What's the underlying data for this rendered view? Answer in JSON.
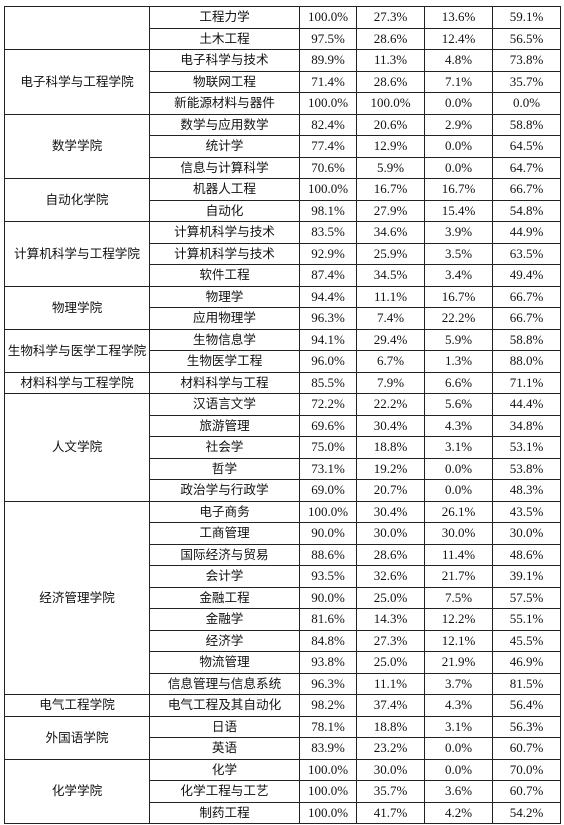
{
  "table": {
    "groups": [
      {
        "college": "",
        "rows": [
          {
            "major": "工程力学",
            "values": [
              "100.0%",
              "27.3%",
              "13.6%",
              "59.1%"
            ]
          },
          {
            "major": "土木工程",
            "values": [
              "97.5%",
              "28.6%",
              "12.4%",
              "56.5%"
            ]
          }
        ]
      },
      {
        "college": "电子科学与工程学院",
        "rows": [
          {
            "major": "电子科学与技术",
            "values": [
              "89.9%",
              "11.3%",
              "4.8%",
              "73.8%"
            ]
          },
          {
            "major": "物联网工程",
            "values": [
              "71.4%",
              "28.6%",
              "7.1%",
              "35.7%"
            ]
          },
          {
            "major": "新能源材料与器件",
            "values": [
              "100.0%",
              "100.0%",
              "0.0%",
              "0.0%"
            ]
          }
        ]
      },
      {
        "college": "数学学院",
        "rows": [
          {
            "major": "数学与应用数学",
            "values": [
              "82.4%",
              "20.6%",
              "2.9%",
              "58.8%"
            ]
          },
          {
            "major": "统计学",
            "values": [
              "77.4%",
              "12.9%",
              "0.0%",
              "64.5%"
            ]
          },
          {
            "major": "信息与计算科学",
            "values": [
              "70.6%",
              "5.9%",
              "0.0%",
              "64.7%"
            ]
          }
        ]
      },
      {
        "college": "自动化学院",
        "rows": [
          {
            "major": "机器人工程",
            "values": [
              "100.0%",
              "16.7%",
              "16.7%",
              "66.7%"
            ]
          },
          {
            "major": "自动化",
            "values": [
              "98.1%",
              "27.9%",
              "15.4%",
              "54.8%"
            ]
          }
        ]
      },
      {
        "college": "计算机科学与工程学院",
        "rows": [
          {
            "major": "计算机科学与技术",
            "values": [
              "83.5%",
              "34.6%",
              "3.9%",
              "44.9%"
            ]
          },
          {
            "major": "计算机科学与技术",
            "values": [
              "92.9%",
              "25.9%",
              "3.5%",
              "63.5%"
            ]
          },
          {
            "major": "软件工程",
            "values": [
              "87.4%",
              "34.5%",
              "3.4%",
              "49.4%"
            ]
          }
        ]
      },
      {
        "college": "物理学院",
        "rows": [
          {
            "major": "物理学",
            "values": [
              "94.4%",
              "11.1%",
              "16.7%",
              "66.7%"
            ]
          },
          {
            "major": "应用物理学",
            "values": [
              "96.3%",
              "7.4%",
              "22.2%",
              "66.7%"
            ]
          }
        ]
      },
      {
        "college": "生物科学与医学工程学院",
        "rows": [
          {
            "major": "生物信息学",
            "values": [
              "94.1%",
              "29.4%",
              "5.9%",
              "58.8%"
            ]
          },
          {
            "major": "生物医学工程",
            "values": [
              "96.0%",
              "6.7%",
              "1.3%",
              "88.0%"
            ]
          }
        ]
      },
      {
        "college": "材料科学与工程学院",
        "rows": [
          {
            "major": "材料科学与工程",
            "values": [
              "85.5%",
              "7.9%",
              "6.6%",
              "71.1%"
            ]
          }
        ]
      },
      {
        "college": "人文学院",
        "rows": [
          {
            "major": "汉语言文学",
            "values": [
              "72.2%",
              "22.2%",
              "5.6%",
              "44.4%"
            ]
          },
          {
            "major": "旅游管理",
            "values": [
              "69.6%",
              "30.4%",
              "4.3%",
              "34.8%"
            ]
          },
          {
            "major": "社会学",
            "values": [
              "75.0%",
              "18.8%",
              "3.1%",
              "53.1%"
            ]
          },
          {
            "major": "哲学",
            "values": [
              "73.1%",
              "19.2%",
              "0.0%",
              "53.8%"
            ]
          },
          {
            "major": "政治学与行政学",
            "values": [
              "69.0%",
              "20.7%",
              "0.0%",
              "48.3%"
            ]
          }
        ]
      },
      {
        "college": "经济管理学院",
        "rows": [
          {
            "major": "电子商务",
            "values": [
              "100.0%",
              "30.4%",
              "26.1%",
              "43.5%"
            ]
          },
          {
            "major": "工商管理",
            "values": [
              "90.0%",
              "30.0%",
              "30.0%",
              "30.0%"
            ]
          },
          {
            "major": "国际经济与贸易",
            "values": [
              "88.6%",
              "28.6%",
              "11.4%",
              "48.6%"
            ]
          },
          {
            "major": "会计学",
            "values": [
              "93.5%",
              "32.6%",
              "21.7%",
              "39.1%"
            ]
          },
          {
            "major": "金融工程",
            "values": [
              "90.0%",
              "25.0%",
              "7.5%",
              "57.5%"
            ]
          },
          {
            "major": "金融学",
            "values": [
              "81.6%",
              "14.3%",
              "12.2%",
              "55.1%"
            ]
          },
          {
            "major": "经济学",
            "values": [
              "84.8%",
              "27.3%",
              "12.1%",
              "45.5%"
            ]
          },
          {
            "major": "物流管理",
            "values": [
              "93.8%",
              "25.0%",
              "21.9%",
              "46.9%"
            ]
          },
          {
            "major": "信息管理与信息系统",
            "values": [
              "96.3%",
              "11.1%",
              "3.7%",
              "81.5%"
            ]
          }
        ]
      },
      {
        "college": "电气工程学院",
        "rows": [
          {
            "major": "电气工程及其自动化",
            "values": [
              "98.2%",
              "37.4%",
              "4.3%",
              "56.4%"
            ]
          }
        ]
      },
      {
        "college": "外国语学院",
        "rows": [
          {
            "major": "日语",
            "values": [
              "78.1%",
              "18.8%",
              "3.1%",
              "56.3%"
            ]
          },
          {
            "major": "英语",
            "values": [
              "83.9%",
              "23.2%",
              "0.0%",
              "60.7%"
            ]
          }
        ]
      },
      {
        "college": "化学学院",
        "rows": [
          {
            "major": "化学",
            "values": [
              "100.0%",
              "30.0%",
              "0.0%",
              "70.0%"
            ]
          },
          {
            "major": "化学工程与工艺",
            "values": [
              "100.0%",
              "35.7%",
              "3.6%",
              "60.7%"
            ]
          },
          {
            "major": "制药工程",
            "values": [
              "100.0%",
              "41.7%",
              "4.2%",
              "54.2%"
            ]
          }
        ]
      }
    ]
  }
}
